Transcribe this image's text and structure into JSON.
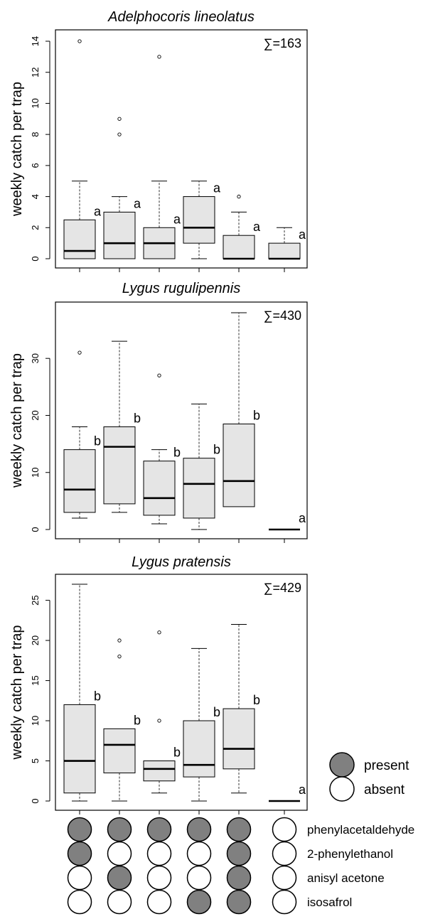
{
  "chart_data": [
    {
      "type": "boxplot",
      "title": "Adelphocoris lineolatus",
      "ylabel": "weekly catch per trap",
      "total_label": "∑=163",
      "ylim": [
        0,
        14
      ],
      "yticks": [
        0,
        2,
        4,
        6,
        8,
        10,
        12,
        14
      ],
      "boxes": [
        {
          "min": 0,
          "q1": 0,
          "median": 0.5,
          "q3": 2.5,
          "max": 5,
          "outliers": [
            14
          ],
          "letter": "a"
        },
        {
          "min": 0,
          "q1": 0,
          "median": 1,
          "q3": 3,
          "max": 4,
          "outliers": [
            8,
            9
          ],
          "letter": "a"
        },
        {
          "min": 0,
          "q1": 0,
          "median": 1,
          "q3": 2,
          "max": 5,
          "outliers": [
            13
          ],
          "letter": "a"
        },
        {
          "min": 0,
          "q1": 1,
          "median": 2,
          "q3": 4,
          "max": 5,
          "outliers": [],
          "letter": "a"
        },
        {
          "min": 0,
          "q1": 0,
          "median": 0,
          "q3": 1.5,
          "max": 3,
          "outliers": [
            4
          ],
          "letter": "a"
        },
        {
          "min": 0,
          "q1": 0,
          "median": 0,
          "q3": 1,
          "max": 2,
          "outliers": [],
          "letter": "a"
        }
      ]
    },
    {
      "type": "boxplot",
      "title": "Lygus rugulipennis",
      "ylabel": "weekly catch per trap",
      "total_label": "∑=430",
      "ylim": [
        0,
        38
      ],
      "yticks": [
        0,
        10,
        20,
        30
      ],
      "boxes": [
        {
          "min": 2,
          "q1": 3,
          "median": 7,
          "q3": 14,
          "max": 18,
          "outliers": [
            31
          ],
          "letter": "b"
        },
        {
          "min": 3,
          "q1": 4.5,
          "median": 14.5,
          "q3": 18,
          "max": 33,
          "outliers": [],
          "letter": "b"
        },
        {
          "min": 1,
          "q1": 2.5,
          "median": 5.5,
          "q3": 12,
          "max": 14,
          "outliers": [
            27
          ],
          "letter": "b"
        },
        {
          "min": 0,
          "q1": 2,
          "median": 8,
          "q3": 12.5,
          "max": 22,
          "outliers": [],
          "letter": "b"
        },
        {
          "min": 4,
          "q1": 4,
          "median": 8.5,
          "q3": 18.5,
          "max": 38,
          "outliers": [],
          "letter": "b"
        },
        {
          "min": 0,
          "q1": 0,
          "median": 0,
          "q3": 0,
          "max": 0,
          "outliers": [],
          "letter": "a"
        }
      ]
    },
    {
      "type": "boxplot",
      "title": "Lygus pratensis",
      "ylabel": "weekly catch per trap",
      "total_label": "∑=429",
      "ylim": [
        0,
        27
      ],
      "yticks": [
        0,
        5,
        10,
        15,
        20,
        25
      ],
      "boxes": [
        {
          "min": 0,
          "q1": 1,
          "median": 5,
          "q3": 12,
          "max": 27,
          "outliers": [],
          "letter": "b"
        },
        {
          "min": 0,
          "q1": 3.5,
          "median": 7,
          "q3": 9,
          "max": 9,
          "outliers": [
            18,
            20
          ],
          "letter": "b"
        },
        {
          "min": 1,
          "q1": 2.5,
          "median": 4,
          "q3": 5,
          "max": 5,
          "outliers": [
            10,
            21
          ],
          "letter": "b"
        },
        {
          "min": 0,
          "q1": 3,
          "median": 4.5,
          "q3": 10,
          "max": 19,
          "outliers": [],
          "letter": "b"
        },
        {
          "min": 1,
          "q1": 4,
          "median": 6.5,
          "q3": 11.5,
          "max": 22,
          "outliers": [],
          "letter": "b"
        },
        {
          "min": 0,
          "q1": 0,
          "median": 0,
          "q3": 0,
          "max": 0,
          "outliers": [],
          "letter": "a"
        }
      ]
    }
  ],
  "legend": {
    "present_label": "present",
    "absent_label": "absent",
    "present_color": "#808080",
    "absent_color": "#ffffff"
  },
  "matrix": {
    "rows": [
      {
        "label": "phenylacetaldehyde",
        "present": [
          true,
          true,
          true,
          true,
          true,
          false
        ]
      },
      {
        "label": "2-phenylethanol",
        "present": [
          true,
          false,
          false,
          false,
          true,
          false
        ]
      },
      {
        "label": "anisyl acetone",
        "present": [
          false,
          true,
          false,
          false,
          true,
          false
        ]
      },
      {
        "label": "isosafrol",
        "present": [
          false,
          false,
          false,
          true,
          true,
          false
        ]
      }
    ]
  },
  "colors": {
    "box_fill": "#e5e5e5",
    "stroke": "#000000"
  }
}
